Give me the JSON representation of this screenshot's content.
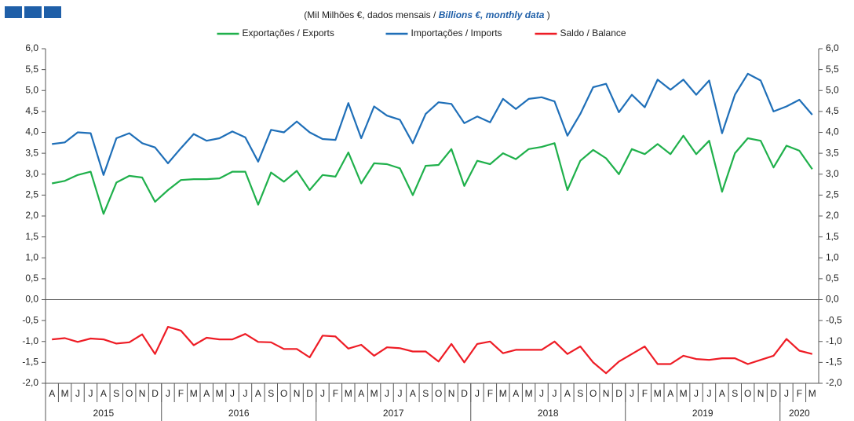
{
  "chart_data": {
    "type": "line",
    "subtitle_parts": [
      "(Mil Milhões €, dados mensais / ",
      "Billions  €, monthly data",
      " )"
    ],
    "categories": [
      "A",
      "M",
      "J",
      "J",
      "A",
      "S",
      "O",
      "N",
      "D",
      "J",
      "F",
      "M",
      "A",
      "M",
      "J",
      "J",
      "A",
      "S",
      "O",
      "N",
      "D",
      "J",
      "F",
      "M",
      "A",
      "M",
      "J",
      "J",
      "A",
      "S",
      "O",
      "N",
      "D",
      "J",
      "F",
      "M",
      "A",
      "M",
      "J",
      "J",
      "A",
      "S",
      "O",
      "N",
      "D",
      "J",
      "F",
      "M",
      "A",
      "M",
      "J",
      "J",
      "A",
      "S",
      "O",
      "N",
      "D",
      "J",
      "F",
      "M"
    ],
    "year_groups": [
      {
        "label": "2015",
        "count": 9
      },
      {
        "label": "2016",
        "count": 12
      },
      {
        "label": "2017",
        "count": 12
      },
      {
        "label": "2018",
        "count": 12
      },
      {
        "label": "2019",
        "count": 12
      },
      {
        "label": "2020",
        "count": 3
      }
    ],
    "series": [
      {
        "name": "Exportações / Exports",
        "color": "#1fb04b",
        "values": [
          2.78,
          2.84,
          2.98,
          3.06,
          2.05,
          2.8,
          2.96,
          2.92,
          2.34,
          2.62,
          2.86,
          2.88,
          2.88,
          2.9,
          3.06,
          3.06,
          2.27,
          3.04,
          2.82,
          3.08,
          2.62,
          2.98,
          2.94,
          3.52,
          2.78,
          3.26,
          3.24,
          3.14,
          2.5,
          3.2,
          3.22,
          3.6,
          2.72,
          3.32,
          3.24,
          3.5,
          3.36,
          3.6,
          3.65,
          3.74,
          2.62,
          3.32,
          3.58,
          3.38,
          3.0,
          3.6,
          3.48,
          3.72,
          3.48,
          3.92,
          3.48,
          3.8,
          2.58,
          3.5,
          3.86,
          3.8,
          3.16,
          3.68,
          3.56,
          3.12
        ]
      },
      {
        "name": "Importações / Imports",
        "color": "#1f6fb8",
        "values": [
          3.72,
          3.76,
          4.0,
          3.98,
          2.98,
          3.86,
          3.98,
          3.74,
          3.64,
          3.26,
          3.62,
          3.96,
          3.8,
          3.86,
          4.02,
          3.88,
          3.3,
          4.06,
          4.0,
          4.26,
          4.0,
          3.84,
          3.82,
          4.7,
          3.86,
          4.62,
          4.4,
          4.3,
          3.74,
          4.44,
          4.72,
          4.68,
          4.22,
          4.38,
          4.24,
          4.8,
          4.56,
          4.8,
          4.84,
          4.74,
          3.92,
          4.44,
          5.08,
          5.16,
          4.48,
          4.9,
          4.6,
          5.26,
          5.02,
          5.26,
          4.9,
          5.24,
          3.98,
          4.9,
          5.4,
          5.24,
          4.5,
          4.62,
          4.78,
          4.42
        ]
      },
      {
        "name": "Saldo / Balance",
        "color": "#ee1c25",
        "values": [
          -0.95,
          -0.92,
          -1.01,
          -0.93,
          -0.95,
          -1.05,
          -1.02,
          -0.83,
          -1.3,
          -0.65,
          -0.74,
          -1.09,
          -0.91,
          -0.95,
          -0.95,
          -0.82,
          -1.01,
          -1.02,
          -1.18,
          -1.18,
          -1.38,
          -0.86,
          -0.88,
          -1.17,
          -1.08,
          -1.34,
          -1.14,
          -1.16,
          -1.24,
          -1.24,
          -1.48,
          -1.06,
          -1.5,
          -1.06,
          -1.0,
          -1.28,
          -1.2,
          -1.2,
          -1.2,
          -1.0,
          -1.3,
          -1.12,
          -1.5,
          -1.76,
          -1.48,
          -1.3,
          -1.12,
          -1.54,
          -1.54,
          -1.34,
          -1.42,
          -1.44,
          -1.4,
          -1.4,
          -1.54,
          -1.44,
          -1.34,
          -0.94,
          -1.22,
          -1.3
        ]
      }
    ],
    "ylim": [
      -2,
      6
    ],
    "yticks": [
      {
        "value": -2,
        "label": "-2,0"
      },
      {
        "value": -1.5,
        "label": "-1,5"
      },
      {
        "value": -1,
        "label": "-1,0"
      },
      {
        "value": -0.5,
        "label": "-0,5"
      },
      {
        "value": 0,
        "label": "0,0"
      },
      {
        "value": 0.5,
        "label": "0,5"
      },
      {
        "value": 1,
        "label": "1,0"
      },
      {
        "value": 1.5,
        "label": "1,5"
      },
      {
        "value": 2,
        "label": "2,0"
      },
      {
        "value": 2.5,
        "label": "2,5"
      },
      {
        "value": 3,
        "label": "3,0"
      },
      {
        "value": 3.5,
        "label": "3,5"
      },
      {
        "value": 4,
        "label": "4,0"
      },
      {
        "value": 4.5,
        "label": "4,5"
      },
      {
        "value": 5,
        "label": "5,0"
      },
      {
        "value": 5.5,
        "label": "5,5"
      },
      {
        "value": 6,
        "label": "6,0"
      }
    ],
    "grid": false
  }
}
